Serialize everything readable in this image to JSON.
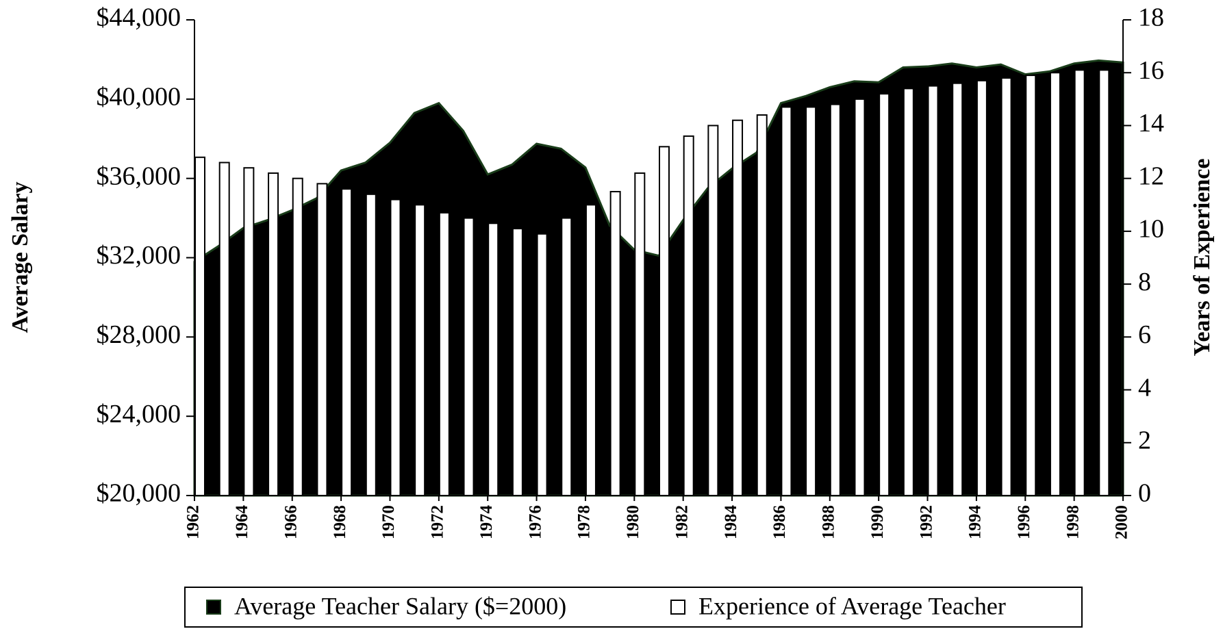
{
  "chart_data": {
    "type": "bar_area",
    "y_label": "Average Salary",
    "y2_label": "Years of Experience",
    "x": [
      1962,
      1963,
      1964,
      1965,
      1966,
      1967,
      1968,
      1969,
      1970,
      1971,
      1972,
      1973,
      1974,
      1975,
      1976,
      1977,
      1978,
      1979,
      1980,
      1981,
      1982,
      1983,
      1984,
      1985,
      1986,
      1987,
      1988,
      1989,
      1990,
      1991,
      1992,
      1993,
      1994,
      1995,
      1996,
      1997,
      1998,
      1999,
      2000
    ],
    "xlim": [
      1962,
      2000
    ],
    "xticks": [
      1962,
      1964,
      1966,
      1968,
      1970,
      1972,
      1974,
      1976,
      1978,
      1980,
      1982,
      1984,
      1986,
      1988,
      1990,
      1992,
      1994,
      1996,
      1998,
      2000
    ],
    "ylim": [
      20000,
      44000
    ],
    "yticks": [
      {
        "value": 20000,
        "label": "$20,000"
      },
      {
        "value": 24000,
        "label": "$24,000"
      },
      {
        "value": 28000,
        "label": "$28,000"
      },
      {
        "value": 32000,
        "label": "$32,000"
      },
      {
        "value": 36000,
        "label": "$36,000"
      },
      {
        "value": 40000,
        "label": "$40,000"
      },
      {
        "value": 44000,
        "label": "$44,000"
      }
    ],
    "y2lim": [
      0,
      18
    ],
    "y2ticks": [
      0,
      2,
      4,
      6,
      8,
      10,
      12,
      14,
      16,
      18
    ],
    "legend": "bottom",
    "series": [
      {
        "name": "Average Teacher Salary ($=2000)",
        "type": "area",
        "color": "#000000",
        "edge": "#1a3d1a",
        "values": [
          31800,
          32600,
          33500,
          33900,
          34400,
          35000,
          36400,
          36800,
          37800,
          39300,
          39800,
          38400,
          36200,
          36700,
          37750,
          37500,
          36550,
          33600,
          32400,
          32100,
          33900,
          35500,
          36500,
          37300,
          39800,
          40150,
          40600,
          40900,
          40850,
          41600,
          41650,
          41800,
          41600,
          41750,
          41250,
          41400,
          41800,
          41950,
          41850
        ]
      },
      {
        "name": "Experience of Average Teacher",
        "type": "bar",
        "axis": "y2",
        "color": "#ffffff",
        "values": [
          12.8,
          12.6,
          12.4,
          12.2,
          12.0,
          11.8,
          11.6,
          11.4,
          11.2,
          11.0,
          10.7,
          10.5,
          10.3,
          10.1,
          9.9,
          10.5,
          11.0,
          11.5,
          12.2,
          13.2,
          13.6,
          14.0,
          14.2,
          14.4,
          14.7,
          14.7,
          14.8,
          15.0,
          15.2,
          15.4,
          15.5,
          15.6,
          15.7,
          15.8,
          15.9,
          16.0,
          16.1,
          16.1,
          null
        ]
      }
    ]
  }
}
